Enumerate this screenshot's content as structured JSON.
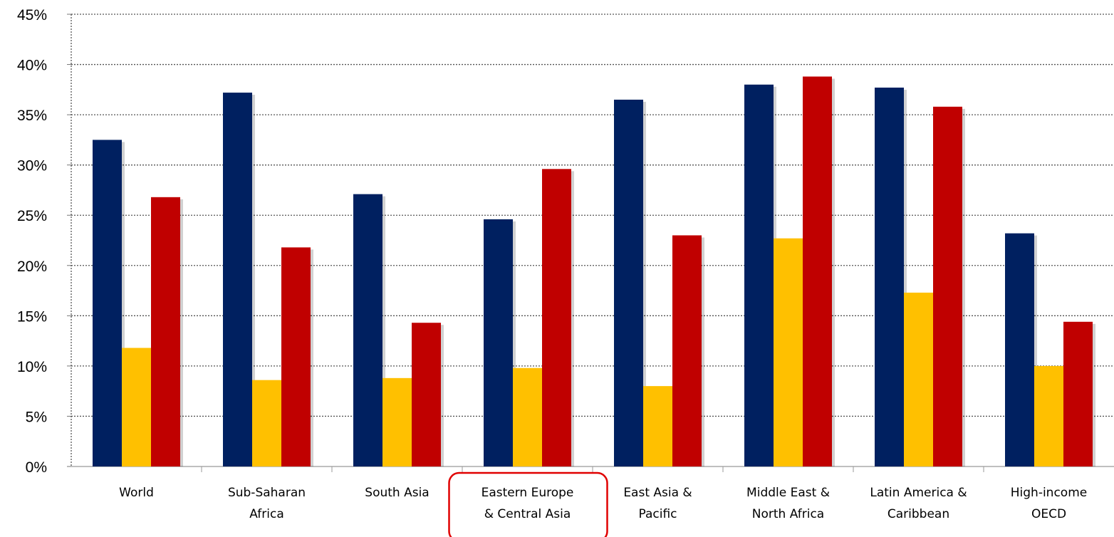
{
  "chart_data": {
    "type": "bar",
    "categories": [
      [
        "World"
      ],
      [
        "Sub-Saharan",
        "Africa"
      ],
      [
        "South Asia"
      ],
      [
        "Eastern Europe",
        "& Central Asia"
      ],
      [
        "East Asia &",
        "Pacific"
      ],
      [
        "Middle East &",
        "North Africa"
      ],
      [
        "Latin America &",
        "Caribbean"
      ],
      [
        "High-income",
        "OECD"
      ]
    ],
    "series": [
      {
        "color": "#002060",
        "values": [
          32.5,
          37.2,
          27.1,
          24.6,
          36.5,
          38.0,
          37.7,
          23.2
        ]
      },
      {
        "color": "#FFC000",
        "values": [
          11.8,
          8.6,
          8.8,
          9.8,
          8.0,
          22.7,
          17.3,
          10.0
        ]
      },
      {
        "color": "#C00000",
        "values": [
          26.8,
          21.8,
          14.3,
          29.6,
          23.0,
          38.8,
          35.8,
          14.4
        ]
      }
    ],
    "y_ticks": [
      "0%",
      "5%",
      "10%",
      "15%",
      "20%",
      "25%",
      "30%",
      "35%",
      "40%",
      "45%"
    ],
    "ylim": [
      0,
      45
    ],
    "y_step": 5,
    "grid": "horizontal dotted",
    "highlighted_category": "Eastern Europe & Central Asia",
    "highlight_color": "#E00000"
  }
}
